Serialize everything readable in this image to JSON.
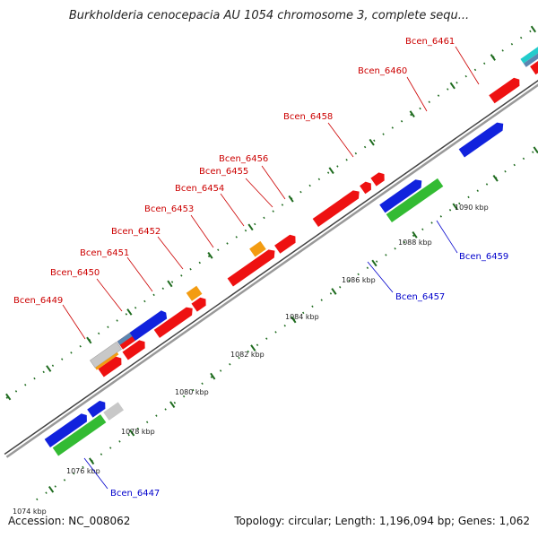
{
  "title": "Burkholderia cenocepacia AU 1054 chromosome 3, complete sequ...",
  "footer": {
    "accession": "Accession: NC_008062",
    "summary": "Topology: circular; Length: 1,196,094 bp; Genes: 1,062"
  },
  "colors": {
    "backbone": "#888888",
    "forward_cds": "#ee1111",
    "reverse_cds": "#1122dd",
    "trna": "#f39c12",
    "rrna": "#33bb33",
    "other": "#c8c8c8",
    "cyan": "#22cccc",
    "steel": "#5b86b0",
    "label_forward": "#cc0000",
    "label_reverse": "#0000cc",
    "tick": "#1e6b1e"
  },
  "ticks": [
    {
      "text": "1074 kbp"
    },
    {
      "text": "1076 kbp"
    },
    {
      "text": "1078 kbp"
    },
    {
      "text": "1080 kbp"
    },
    {
      "text": "1082 kbp"
    },
    {
      "text": "1084 kbp"
    },
    {
      "text": "1086 kbp"
    },
    {
      "text": "1088 kbp"
    },
    {
      "text": "1090 kbp"
    }
  ],
  "genes": {
    "forward": [
      {
        "name": "Bcen_6449"
      },
      {
        "name": "Bcen_6450"
      },
      {
        "name": "Bcen_6451"
      },
      {
        "name": "Bcen_6452"
      },
      {
        "name": "Bcen_6453"
      },
      {
        "name": "Bcen_6454"
      },
      {
        "name": "Bcen_6455"
      },
      {
        "name": "Bcen_6456"
      },
      {
        "name": "Bcen_6458"
      },
      {
        "name": "Bcen_6460"
      },
      {
        "name": "Bcen_6461"
      }
    ],
    "reverse": [
      {
        "name": "Bcen_6447"
      },
      {
        "name": "Bcen_6457"
      },
      {
        "name": "Bcen_6459"
      }
    ]
  }
}
